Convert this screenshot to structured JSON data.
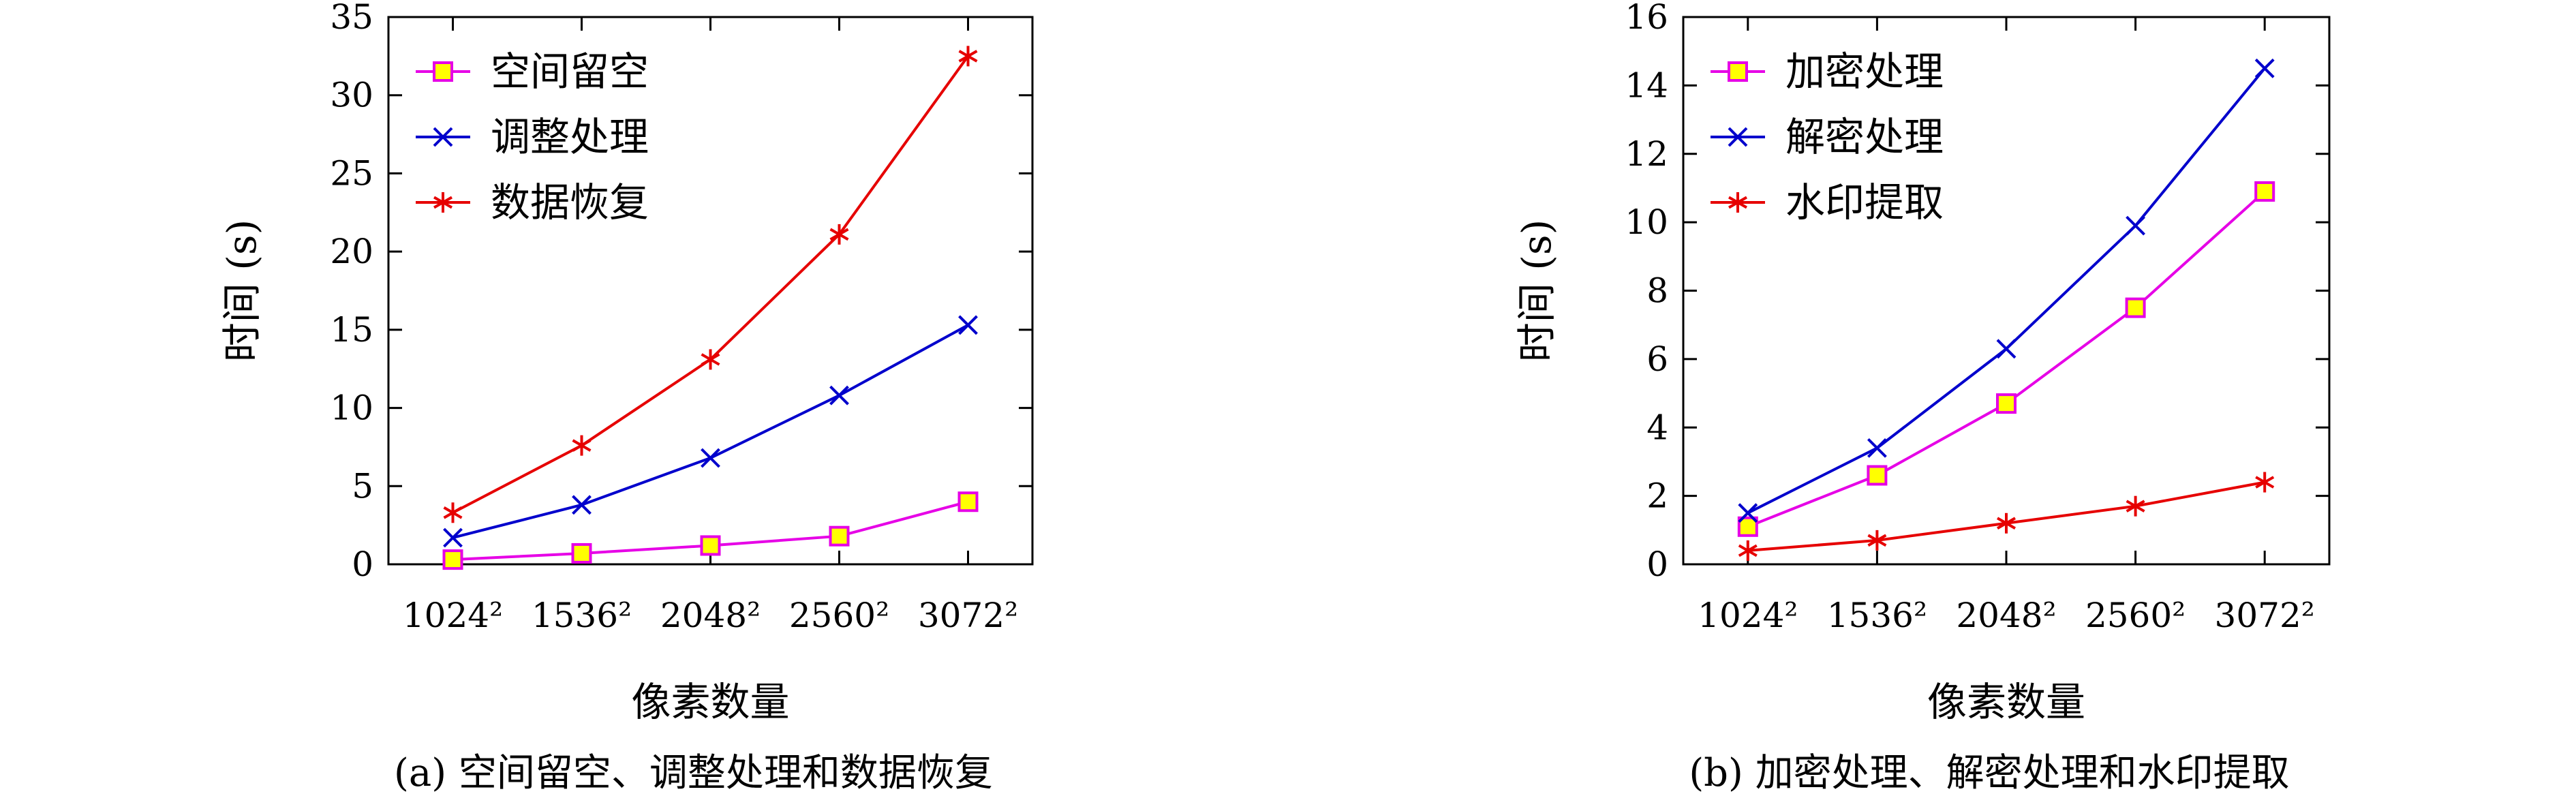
{
  "chart_data": [
    {
      "type": "line",
      "caption": "(a) 空间留空、调整处理和数据恢复",
      "xlabel": "像素数量",
      "ylabel": "时间 (s)",
      "categories": [
        "1024²",
        "1536²",
        "2048²",
        "2560²",
        "3072²"
      ],
      "ylim": [
        0,
        35
      ],
      "yticks": [
        0,
        5,
        10,
        15,
        20,
        25,
        30,
        35
      ],
      "grid": false,
      "legend_position": "top-left",
      "series": [
        {
          "name": "空间留空",
          "marker": "square",
          "color": "#e600e6",
          "fill": "#ffff00",
          "values": [
            0.3,
            0.7,
            1.2,
            1.8,
            4.0
          ]
        },
        {
          "name": "调整处理",
          "marker": "x",
          "color": "#0000cc",
          "values": [
            1.7,
            3.8,
            6.8,
            10.8,
            15.3
          ]
        },
        {
          "name": "数据恢复",
          "marker": "star",
          "color": "#e60000",
          "values": [
            3.3,
            7.6,
            13.1,
            21.1,
            32.5
          ]
        }
      ]
    },
    {
      "type": "line",
      "caption": "(b) 加密处理、解密处理和水印提取",
      "xlabel": "像素数量",
      "ylabel": "时间 (s)",
      "categories": [
        "1024²",
        "1536²",
        "2048²",
        "2560²",
        "3072²"
      ],
      "ylim": [
        0,
        16
      ],
      "yticks": [
        0,
        2,
        4,
        6,
        8,
        10,
        12,
        14,
        16
      ],
      "grid": false,
      "legend_position": "top-left",
      "series": [
        {
          "name": "加密处理",
          "marker": "square",
          "color": "#e600e6",
          "fill": "#ffff00",
          "values": [
            1.1,
            2.6,
            4.7,
            7.5,
            10.9
          ]
        },
        {
          "name": "解密处理",
          "marker": "x",
          "color": "#0000cc",
          "values": [
            1.5,
            3.4,
            6.3,
            9.9,
            14.5
          ]
        },
        {
          "name": "水印提取",
          "marker": "star",
          "color": "#e60000",
          "values": [
            0.4,
            0.7,
            1.2,
            1.7,
            2.4
          ]
        }
      ]
    }
  ]
}
